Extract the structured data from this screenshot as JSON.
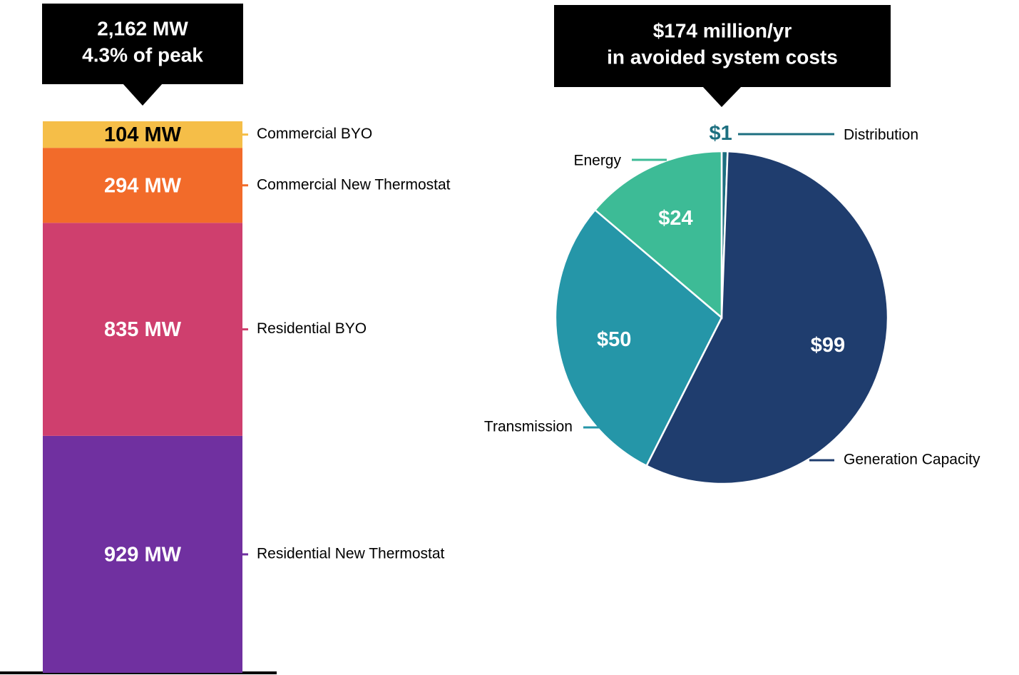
{
  "chart_data": [
    {
      "type": "stacked_bar",
      "title": [
        "2,162 MW",
        "4.3% of peak"
      ],
      "series": [
        {
          "name": "Residential New Thermostat",
          "color": "#7030a0",
          "values": [
            929
          ],
          "value_labels": [
            "929 MW"
          ],
          "label_color": "#ffffff"
        },
        {
          "name": "Residential BYO",
          "color": "#cf3f6e",
          "values": [
            835
          ],
          "value_labels": [
            "835 MW"
          ],
          "label_color": "#ffffff"
        },
        {
          "name": "Commercial New Thermostat",
          "color": "#f26b2a",
          "values": [
            294
          ],
          "value_labels": [
            "294 MW"
          ],
          "label_color": "#ffffff"
        },
        {
          "name": "Commercial BYO",
          "color": "#f5be48",
          "values": [
            104
          ],
          "value_labels": [
            "104 MW"
          ],
          "label_color": "#000000"
        }
      ]
    },
    {
      "type": "pie",
      "title": [
        "$174 million/yr",
        "in avoided system costs"
      ],
      "categories": [
        "Distribution",
        "Generation Capacity",
        "Transmission",
        "Energy"
      ],
      "values": [
        1,
        99,
        50,
        24
      ],
      "value_labels": [
        "$1",
        "$99",
        "$50",
        "$24"
      ],
      "colors": [
        "#1d6f80",
        "#1f3d6e",
        "#2596a8",
        "#3dbb96"
      ]
    }
  ]
}
